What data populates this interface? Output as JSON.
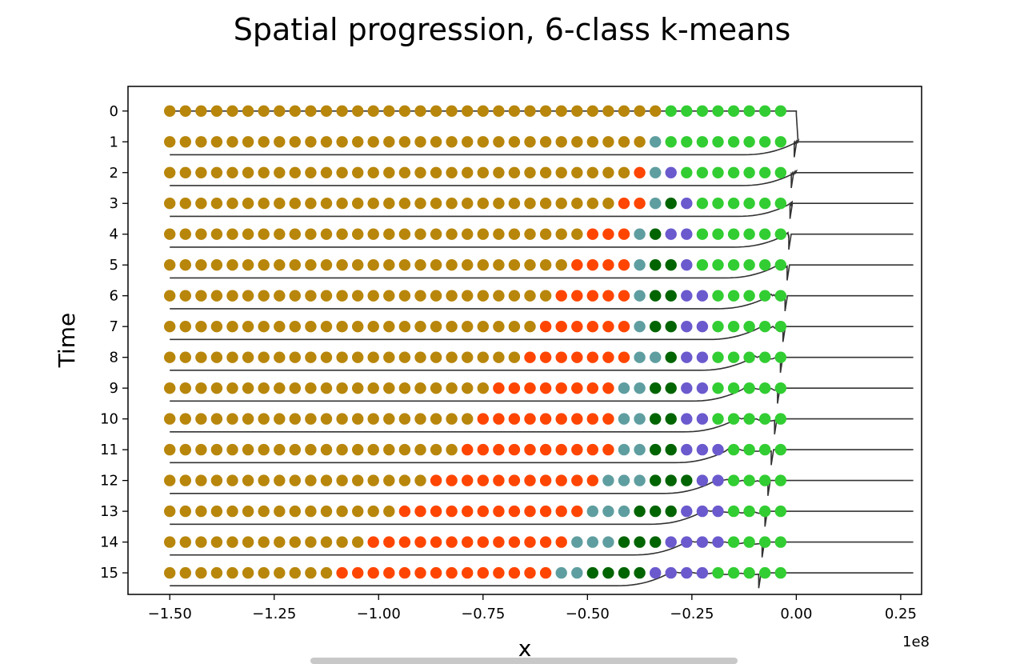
{
  "chart_data": {
    "type": "scatter",
    "title": "Spatial progression, 6-class k-means",
    "xlabel": "x",
    "ylabel": "Time",
    "x_offset_label": "1e8",
    "x_scale": 100000000,
    "xlim": [
      -1.6,
      0.3
    ],
    "ylim": [
      -0.8,
      15.7
    ],
    "y_inverted": true,
    "grid": false,
    "legend": "none",
    "x_ticks": [
      -1.5,
      -1.25,
      -1.0,
      -0.75,
      -0.5,
      -0.25,
      0.0,
      0.25
    ],
    "x_tick_labels": [
      "−1.50",
      "−1.25",
      "−1.00",
      "−0.75",
      "−0.50",
      "−0.25",
      "0.00",
      "0.25"
    ],
    "y_ticks": [
      0,
      1,
      2,
      3,
      4,
      5,
      6,
      7,
      8,
      9,
      10,
      11,
      12,
      13,
      14,
      15
    ],
    "y_tick_labels": [
      "0",
      "1",
      "2",
      "3",
      "4",
      "5",
      "6",
      "7",
      "8",
      "9",
      "10",
      "11",
      "12",
      "13",
      "14",
      "15"
    ],
    "point_x_start": -1.5,
    "point_x_step": 0.0375,
    "point_count": 40,
    "class_colors": [
      "#b8860b",
      "#ff4500",
      "#5f9ea0",
      "#006400",
      "#6a5acd",
      "#32cd32"
    ],
    "class_order_right_to_left": [
      "green (5)",
      "slateblue (4)",
      "darkgreen (3)",
      "cadetblue (2)",
      "orangered (1)",
      "goldenrod (0)"
    ],
    "class_counts_note": "per time row: counts of points per class in order [goldenrod, orangered, cadetblue, darkgreen, slateblue, green]",
    "class_counts": [
      [
        32,
        0,
        0,
        0,
        0,
        8
      ],
      [
        31,
        0,
        1,
        0,
        0,
        8
      ],
      [
        30,
        1,
        1,
        0,
        1,
        7
      ],
      [
        29,
        2,
        1,
        1,
        1,
        6
      ],
      [
        27,
        3,
        1,
        1,
        2,
        6
      ],
      [
        26,
        4,
        1,
        2,
        1,
        6
      ],
      [
        25,
        5,
        1,
        2,
        2,
        5
      ],
      [
        24,
        6,
        1,
        2,
        2,
        5
      ],
      [
        23,
        7,
        2,
        1,
        2,
        5
      ],
      [
        21,
        8,
        2,
        2,
        2,
        5
      ],
      [
        20,
        9,
        2,
        2,
        2,
        5
      ],
      [
        19,
        10,
        2,
        2,
        3,
        4
      ],
      [
        17,
        11,
        3,
        3,
        2,
        4
      ],
      [
        15,
        12,
        3,
        3,
        3,
        4
      ],
      [
        13,
        13,
        3,
        3,
        4,
        4
      ],
      [
        11,
        14,
        2,
        4,
        4,
        5
      ]
    ],
    "profile_line_color": "#333333",
    "profile_front_x": [
      0.0,
      -0.005,
      -0.01,
      -0.02,
      -0.03,
      -0.05,
      -0.07,
      -0.09,
      -0.11,
      -0.13,
      -0.15,
      -0.17,
      -0.2,
      -0.23,
      -0.27,
      -0.31
    ],
    "profile_step_x": [
      0.0,
      -0.005,
      -0.012,
      -0.015,
      -0.018,
      -0.022,
      -0.027,
      -0.032,
      -0.038,
      -0.045,
      -0.052,
      -0.06,
      -0.068,
      -0.075,
      -0.082,
      -0.09
    ]
  }
}
